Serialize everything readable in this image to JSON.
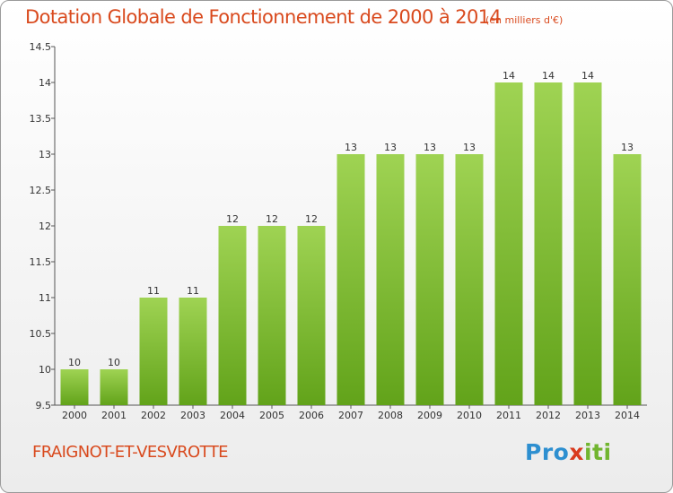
{
  "title": "Dotation Globale de Fonctionnement de 2000 à 2014",
  "unit_note": "(en milliers d'€)",
  "commune": "FRAIGNOT-ET-VESVROTTE",
  "logo": {
    "p": "Pro",
    "x": "x",
    "i": "iti"
  },
  "colors": {
    "bar_top": "#9fd353",
    "bar_bottom": "#62a31a",
    "title": "#d94a1e"
  },
  "chart_data": {
    "type": "bar",
    "categories": [
      "2000",
      "2001",
      "2002",
      "2003",
      "2004",
      "2005",
      "2006",
      "2007",
      "2008",
      "2009",
      "2010",
      "2011",
      "2012",
      "2013",
      "2014"
    ],
    "values": [
      10,
      10,
      11,
      11,
      12,
      12,
      12,
      13,
      13,
      13,
      13,
      14,
      14,
      14,
      13
    ],
    "labels": [
      "10",
      "10",
      "11",
      "11",
      "12",
      "12",
      "12",
      "13",
      "13",
      "13",
      "13",
      "14",
      "14",
      "14",
      "13"
    ],
    "yticks": [
      "9.5",
      "10",
      "10.5",
      "11",
      "11.5",
      "12",
      "12.5",
      "13",
      "13.5",
      "14",
      "14.5"
    ],
    "ylim": [
      9.5,
      14.5
    ],
    "grid": false
  }
}
